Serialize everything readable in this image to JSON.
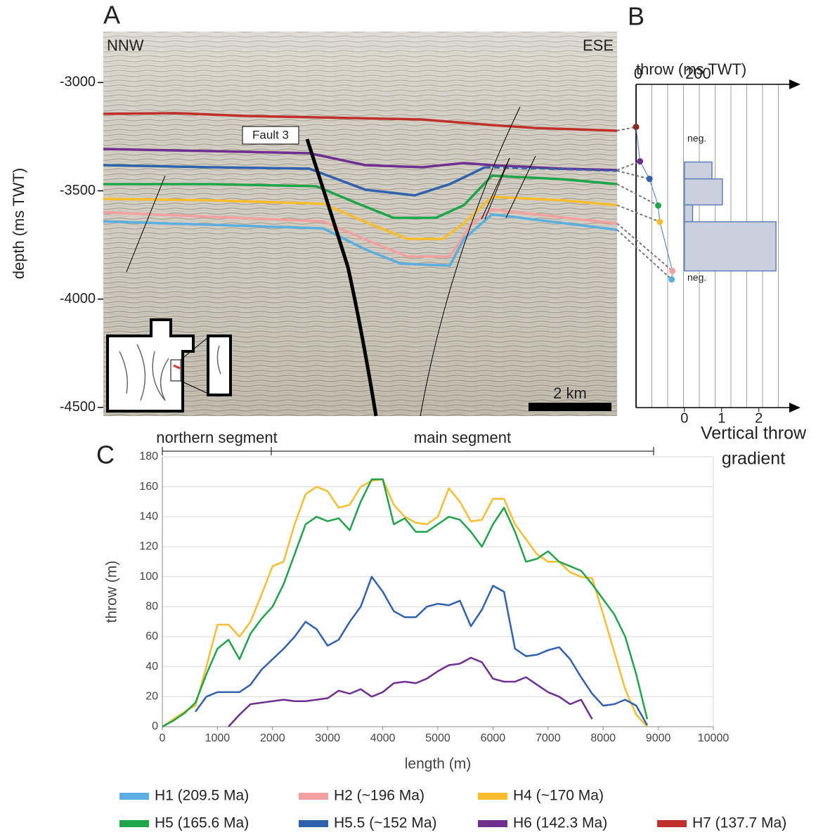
{
  "chart_data": [
    {
      "type": "section",
      "label": "A",
      "ylabel": "depth (ms TWT)",
      "ylim": [
        -4540,
        -2765
      ],
      "yticks": [
        -3000,
        -3500,
        -4000,
        -4500
      ],
      "annotations": {
        "left": "NNW",
        "right": "ESE",
        "fault": "Fault 3",
        "scale": "2 km"
      }
    },
    {
      "type": "scatter",
      "label": "B",
      "title": "throw (ms TWT)",
      "x": [
        0,
        25,
        85,
        140,
        150,
        230,
        225
      ],
      "y": [
        -3205,
        -3364,
        -3445,
        -3568,
        -3643,
        -3870,
        -3909
      ],
      "colors": [
        "#8b2a22",
        "#6f2f91",
        "#2f62ae",
        "#1ea54a",
        "#f9bc2c",
        "#f4a0a0",
        "#5aaee0"
      ],
      "line_color": "#5b8fd0",
      "xlim": [
        0,
        1000
      ],
      "xticks": [
        0,
        200
      ],
      "xgrid": [
        0,
        100,
        200,
        300,
        400,
        500,
        600,
        700,
        800,
        900
      ],
      "ylim": [
        -4540,
        -2765
      ],
      "gradient": {
        "type": "bar",
        "bins": [
          -3367,
          -3445,
          -3565,
          -3643,
          -3870
        ],
        "values": [
          0.74,
          1.02,
          0.22,
          2.46
        ],
        "color": "#cbd0de",
        "edge_color": "#5b7fb8",
        "xlim": [
          -1.3,
          2.95
        ],
        "xticks": [
          0,
          1,
          2
        ],
        "xlabel": [
          "Vertical throw",
          "gradient"
        ]
      },
      "annotations": [
        "neg.",
        "neg."
      ]
    },
    {
      "type": "line",
      "label": "C",
      "xlabel": "length (m)",
      "ylabel": "throw (m)",
      "segments": [
        "northern segment",
        "main segment"
      ],
      "x": [
        0,
        200,
        400,
        600,
        800,
        1000,
        1200,
        1400,
        1600,
        1800,
        2000,
        2200,
        2400,
        2600,
        2800,
        3000,
        3200,
        3400,
        3600,
        3800,
        4000,
        4200,
        4400,
        4600,
        4800,
        5000,
        5200,
        5400,
        5600,
        5800,
        6000,
        6200,
        6400,
        6600,
        6800,
        7000,
        7200,
        7400,
        7600,
        7800,
        8000,
        8200,
        8400,
        8600,
        8800
      ],
      "xlim": [
        0,
        10000
      ],
      "xticks": [
        0,
        1000,
        2000,
        3000,
        4000,
        5000,
        6000,
        7000,
        8000,
        9000,
        10000
      ],
      "ylim": [
        0,
        180
      ],
      "yticks": [
        0,
        20,
        40,
        60,
        80,
        100,
        120,
        140,
        160,
        180
      ],
      "grid": true,
      "series": [
        {
          "color": "#f9bc2c",
          "values": [
            0,
            5,
            10,
            14,
            40,
            68,
            68,
            60,
            70,
            88,
            107,
            110,
            135,
            155,
            160,
            157,
            146,
            148,
            160,
            164,
            165,
            148,
            140,
            136,
            135,
            140,
            159,
            150,
            137,
            138,
            152,
            152,
            135,
            125,
            115,
            110,
            110,
            103,
            100,
            99,
            75,
            50,
            25,
            8,
            0
          ]
        },
        {
          "color": "#1ea54a",
          "values": [
            0,
            4,
            9,
            16,
            35,
            52,
            58,
            45,
            62,
            72,
            80,
            95,
            115,
            135,
            140,
            137,
            139,
            131,
            150,
            165,
            165,
            135,
            139,
            130,
            130,
            135,
            140,
            138,
            130,
            120,
            135,
            146,
            130,
            110,
            112,
            117,
            110,
            107,
            104,
            95,
            85,
            75,
            60,
            35,
            5
          ]
        },
        {
          "color": "#2f62ae",
          "values": [
            null,
            null,
            null,
            10,
            20,
            23,
            23,
            23,
            28,
            38,
            45,
            52,
            60,
            70,
            65,
            54,
            58,
            70,
            80,
            100,
            90,
            77,
            73,
            73,
            80,
            82,
            81,
            84,
            67,
            78,
            94,
            90,
            52,
            47,
            48,
            51,
            53,
            45,
            33,
            22,
            14,
            15,
            18,
            14,
            1
          ]
        },
        {
          "color": "#6f2f91",
          "values": [
            null,
            null,
            null,
            null,
            null,
            null,
            0,
            8,
            15,
            16,
            17,
            18,
            17,
            17,
            18,
            19,
            24,
            22,
            25,
            20,
            23,
            29,
            30,
            29,
            32,
            37,
            41,
            42,
            46,
            43,
            32,
            30,
            30,
            33,
            28,
            23,
            20,
            15,
            18,
            5,
            null,
            null,
            null,
            null,
            null
          ]
        }
      ]
    }
  ],
  "legend": [
    {
      "name": "H1 (209.5 Ma)",
      "color": "#5aaee0"
    },
    {
      "name": "H2 (~196 Ma)",
      "color": "#f4a0a0"
    },
    {
      "name": "H4 (~170 Ma)",
      "color": "#f9bc2c"
    },
    {
      "name": "H5 (165.6 Ma)",
      "color": "#1ea54a"
    },
    {
      "name": "H5.5 (~152 Ma)",
      "color": "#2f62ae"
    },
    {
      "name": "H6 (142.3 Ma)",
      "color": "#6f2f91"
    },
    {
      "name": "H7 (137.7 Ma)",
      "color": "#c0302a"
    }
  ]
}
